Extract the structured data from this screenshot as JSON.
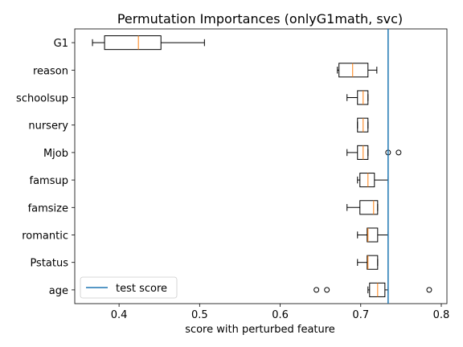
{
  "chart_data": {
    "type": "boxplot",
    "orientation": "horizontal",
    "title": "Permutation Importances (onlyG1math, svc)",
    "xlabel": "score with perturbed feature",
    "xlim": [
      0.345,
      0.807
    ],
    "xticks": [
      0.4,
      0.5,
      0.6,
      0.7,
      0.8
    ],
    "xtick_labels": [
      "0.4",
      "0.5",
      "0.6",
      "0.7",
      "0.8"
    ],
    "grid": false,
    "legend": {
      "position": "lower-left",
      "entries": [
        {
          "label": "test score",
          "color": "#1f77b4"
        }
      ]
    },
    "reference_line": {
      "label": "test score",
      "value": 0.734,
      "color": "#1f77b4"
    },
    "box_color": "#000000",
    "median_color": "#ff7f0e",
    "features": [
      {
        "name": "G1",
        "whisker_low": 0.367,
        "q1": 0.382,
        "median": 0.424,
        "q3": 0.452,
        "whisker_high": 0.506,
        "outliers": []
      },
      {
        "name": "reason",
        "whisker_low": 0.671,
        "q1": 0.673,
        "median": 0.69,
        "q3": 0.709,
        "whisker_high": 0.72,
        "outliers": []
      },
      {
        "name": "schoolsup",
        "whisker_low": 0.683,
        "q1": 0.696,
        "median": 0.703,
        "q3": 0.709,
        "whisker_high": 0.709,
        "outliers": []
      },
      {
        "name": "nursery",
        "whisker_low": 0.696,
        "q1": 0.696,
        "median": 0.703,
        "q3": 0.709,
        "whisker_high": 0.709,
        "outliers": []
      },
      {
        "name": "Mjob",
        "whisker_low": 0.683,
        "q1": 0.696,
        "median": 0.703,
        "q3": 0.709,
        "whisker_high": 0.709,
        "outliers": [
          0.734,
          0.747
        ]
      },
      {
        "name": "famsup",
        "whisker_low": 0.696,
        "q1": 0.699,
        "median": 0.709,
        "q3": 0.717,
        "whisker_high": 0.734,
        "outliers": []
      },
      {
        "name": "famsize",
        "whisker_low": 0.683,
        "q1": 0.699,
        "median": 0.716,
        "q3": 0.721,
        "whisker_high": 0.721,
        "outliers": []
      },
      {
        "name": "romantic",
        "whisker_low": 0.696,
        "q1": 0.708,
        "median": 0.709,
        "q3": 0.721,
        "whisker_high": 0.734,
        "outliers": []
      },
      {
        "name": "Pstatus",
        "whisker_low": 0.696,
        "q1": 0.708,
        "median": 0.709,
        "q3": 0.721,
        "whisker_high": 0.721,
        "outliers": []
      },
      {
        "name": "age",
        "whisker_low": 0.709,
        "q1": 0.711,
        "median": 0.721,
        "q3": 0.73,
        "whisker_high": 0.734,
        "outliers": [
          0.645,
          0.658,
          0.785
        ]
      }
    ]
  }
}
